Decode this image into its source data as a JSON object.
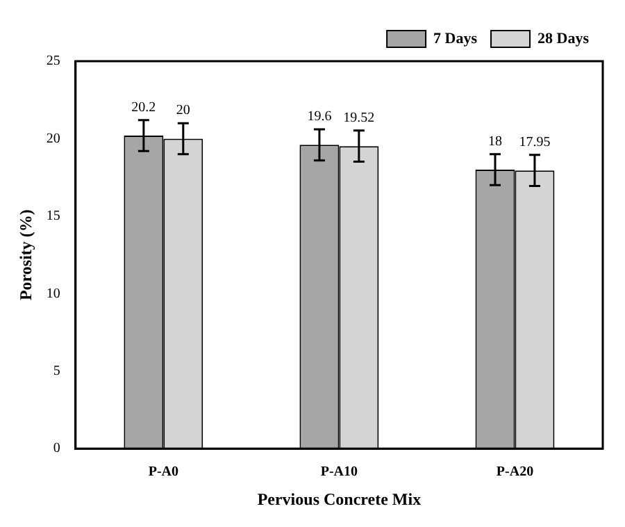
{
  "chart_data": {
    "type": "bar",
    "xlabel": "Pervious Concrete Mix",
    "ylabel": "Porosity (%)",
    "categories": [
      "P-A0",
      "P-A10",
      "P-A20"
    ],
    "series": [
      {
        "name": "7 Days",
        "color": "#a6a6a6",
        "values": [
          20.2,
          19.6,
          18
        ],
        "errors": [
          1,
          1,
          1
        ]
      },
      {
        "name": "28 Days",
        "color": "#d4d4d4",
        "values": [
          20,
          19.52,
          17.95
        ],
        "errors": [
          1,
          1,
          1
        ]
      }
    ],
    "ylim": [
      0,
      25
    ],
    "yticks": [
      0,
      5,
      10,
      15,
      20,
      25
    ],
    "legend": "top right",
    "data_labels": true,
    "grid": false
  }
}
